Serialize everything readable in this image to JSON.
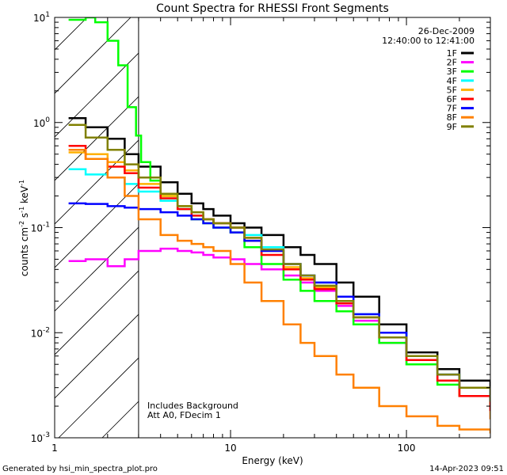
{
  "chart_data": {
    "type": "line",
    "title": "Count Spectra for RHESSI Front Segments",
    "xlabel": "Energy (keV)",
    "ylabel_parts": [
      "counts cm",
      "-2",
      " s",
      "-1",
      " keV",
      "-1"
    ],
    "xscale": "log",
    "yscale": "log",
    "xlim": [
      1,
      300
    ],
    "ylim": [
      0.001,
      10
    ],
    "x_ticks": [
      {
        "value": 1,
        "label": "1"
      },
      {
        "value": 10,
        "label": "10"
      },
      {
        "value": 100,
        "label": "100"
      }
    ],
    "y_ticks": [
      {
        "value": 0.001,
        "base": "10",
        "exp": "-3"
      },
      {
        "value": 0.01,
        "base": "10",
        "exp": "-2"
      },
      {
        "value": 0.1,
        "base": "10",
        "exp": "-1"
      },
      {
        "value": 1,
        "base": "10",
        "exp": "0"
      },
      {
        "value": 10,
        "base": "10",
        "exp": "1"
      }
    ],
    "hatched_region_kev": [
      1,
      3
    ],
    "date": "26-Dec-2009",
    "time_range": "12:40:00 to 12:41:00",
    "annotation_lines": [
      "Includes Background",
      "Att A0, FDecim 1"
    ],
    "series": [
      {
        "name": "1F",
        "color": "#000000",
        "x": [
          1.2,
          1.5,
          2,
          2.5,
          3,
          4,
          5,
          6,
          7,
          8,
          10,
          12,
          15,
          20,
          25,
          30,
          40,
          50,
          70,
          100,
          150,
          200,
          300
        ],
        "y": [
          1.1,
          0.9,
          0.7,
          0.5,
          0.38,
          0.27,
          0.21,
          0.17,
          0.15,
          0.13,
          0.11,
          0.1,
          0.085,
          0.065,
          0.055,
          0.045,
          0.03,
          0.022,
          0.012,
          0.0065,
          0.0045,
          0.0035,
          0.003
        ]
      },
      {
        "name": "2F",
        "color": "#ff00ff",
        "x": [
          1.2,
          1.5,
          2,
          2.5,
          3,
          4,
          5,
          6,
          7,
          8,
          10,
          12,
          15,
          20,
          25,
          30,
          40,
          50,
          70,
          100,
          150,
          200,
          300
        ],
        "y": [
          0.048,
          0.05,
          0.043,
          0.05,
          0.06,
          0.063,
          0.06,
          0.058,
          0.055,
          0.052,
          0.05,
          0.045,
          0.04,
          0.035,
          0.03,
          0.025,
          0.018,
          0.013,
          0.008,
          0.005,
          0.0035,
          0.0025,
          0.0015
        ]
      },
      {
        "name": "3F",
        "color": "#00ff00",
        "x": [
          1.2,
          1.5,
          1.7,
          2,
          2.3,
          2.6,
          2.9,
          3.1,
          3.5,
          4,
          5,
          6,
          7,
          8,
          10,
          12,
          15,
          20,
          25,
          30,
          40,
          50,
          70,
          100,
          150,
          200,
          300
        ],
        "y": [
          9.5,
          10,
          9,
          6,
          3.5,
          1.4,
          0.75,
          0.42,
          0.28,
          0.2,
          0.15,
          0.12,
          0.11,
          0.1,
          0.09,
          0.065,
          0.045,
          0.032,
          0.025,
          0.02,
          0.016,
          0.012,
          0.008,
          0.005,
          0.0032,
          0.0025,
          0.002
        ]
      },
      {
        "name": "4F",
        "color": "#00ffff",
        "x": [
          1.2,
          1.5,
          2,
          2.5,
          3,
          4,
          5,
          6,
          7,
          8,
          10,
          12,
          15,
          20,
          25,
          30,
          40,
          50,
          70,
          100,
          150,
          200,
          300
        ],
        "y": [
          0.36,
          0.32,
          0.3,
          0.26,
          0.22,
          0.18,
          0.15,
          0.13,
          0.12,
          0.11,
          0.1,
          0.085,
          0.065,
          0.045,
          0.035,
          0.03,
          0.022,
          0.015,
          0.01,
          0.006,
          0.004,
          0.003,
          0.0022
        ]
      },
      {
        "name": "5F",
        "color": "#ffb000",
        "x": [
          1.2,
          1.5,
          2,
          2.5,
          3,
          4,
          5,
          6,
          7,
          8,
          10,
          12,
          15,
          20,
          25,
          30,
          40,
          50,
          70,
          100,
          150,
          200,
          300
        ],
        "y": [
          0.52,
          0.5,
          0.42,
          0.35,
          0.26,
          0.2,
          0.16,
          0.14,
          0.12,
          0.11,
          0.1,
          0.08,
          0.06,
          0.042,
          0.033,
          0.027,
          0.02,
          0.014,
          0.009,
          0.0055,
          0.0035,
          0.0025,
          0.0015
        ]
      },
      {
        "name": "6F",
        "color": "#ff0000",
        "x": [
          1.2,
          1.5,
          2,
          2.5,
          3,
          4,
          5,
          6,
          7,
          8,
          10,
          12,
          15,
          20,
          25,
          30,
          40,
          50,
          70,
          100,
          150,
          200,
          300
        ],
        "y": [
          0.6,
          0.45,
          0.38,
          0.33,
          0.24,
          0.19,
          0.15,
          0.13,
          0.12,
          0.11,
          0.1,
          0.075,
          0.055,
          0.04,
          0.032,
          0.026,
          0.019,
          0.014,
          0.009,
          0.0055,
          0.0035,
          0.0025,
          0.0018
        ]
      },
      {
        "name": "7F",
        "color": "#0000ff",
        "x": [
          1.2,
          1.5,
          2,
          2.5,
          3,
          4,
          5,
          6,
          7,
          8,
          10,
          12,
          15,
          20,
          25,
          30,
          40,
          50,
          70,
          100,
          150,
          200,
          300
        ],
        "y": [
          0.17,
          0.168,
          0.16,
          0.155,
          0.15,
          0.14,
          0.13,
          0.12,
          0.11,
          0.1,
          0.09,
          0.075,
          0.06,
          0.045,
          0.035,
          0.03,
          0.022,
          0.015,
          0.01,
          0.006,
          0.004,
          0.003,
          0.0022
        ]
      },
      {
        "name": "8F",
        "color": "#ff8000",
        "x": [
          1.2,
          1.5,
          2,
          2.5,
          3,
          4,
          5,
          6,
          7,
          8,
          10,
          12,
          15,
          20,
          25,
          30,
          40,
          50,
          70,
          100,
          150,
          200,
          300
        ],
        "y": [
          0.55,
          0.45,
          0.3,
          0.2,
          0.12,
          0.085,
          0.075,
          0.07,
          0.065,
          0.06,
          0.045,
          0.03,
          0.02,
          0.012,
          0.008,
          0.006,
          0.004,
          0.003,
          0.002,
          0.0016,
          0.0013,
          0.0012,
          0.0011
        ]
      },
      {
        "name": "9F",
        "color": "#808000",
        "x": [
          1.2,
          1.5,
          2,
          2.5,
          3,
          4,
          5,
          6,
          7,
          8,
          10,
          12,
          15,
          20,
          25,
          30,
          40,
          50,
          70,
          100,
          150,
          200,
          300
        ],
        "y": [
          0.95,
          0.72,
          0.55,
          0.4,
          0.3,
          0.21,
          0.16,
          0.14,
          0.12,
          0.11,
          0.1,
          0.08,
          0.062,
          0.045,
          0.035,
          0.028,
          0.02,
          0.014,
          0.009,
          0.006,
          0.004,
          0.003,
          0.0022
        ]
      }
    ]
  },
  "footer": {
    "generated_by": "Generated by hsi_min_spectra_plot.pro",
    "timestamp": "14-Apr-2023 09:51"
  }
}
